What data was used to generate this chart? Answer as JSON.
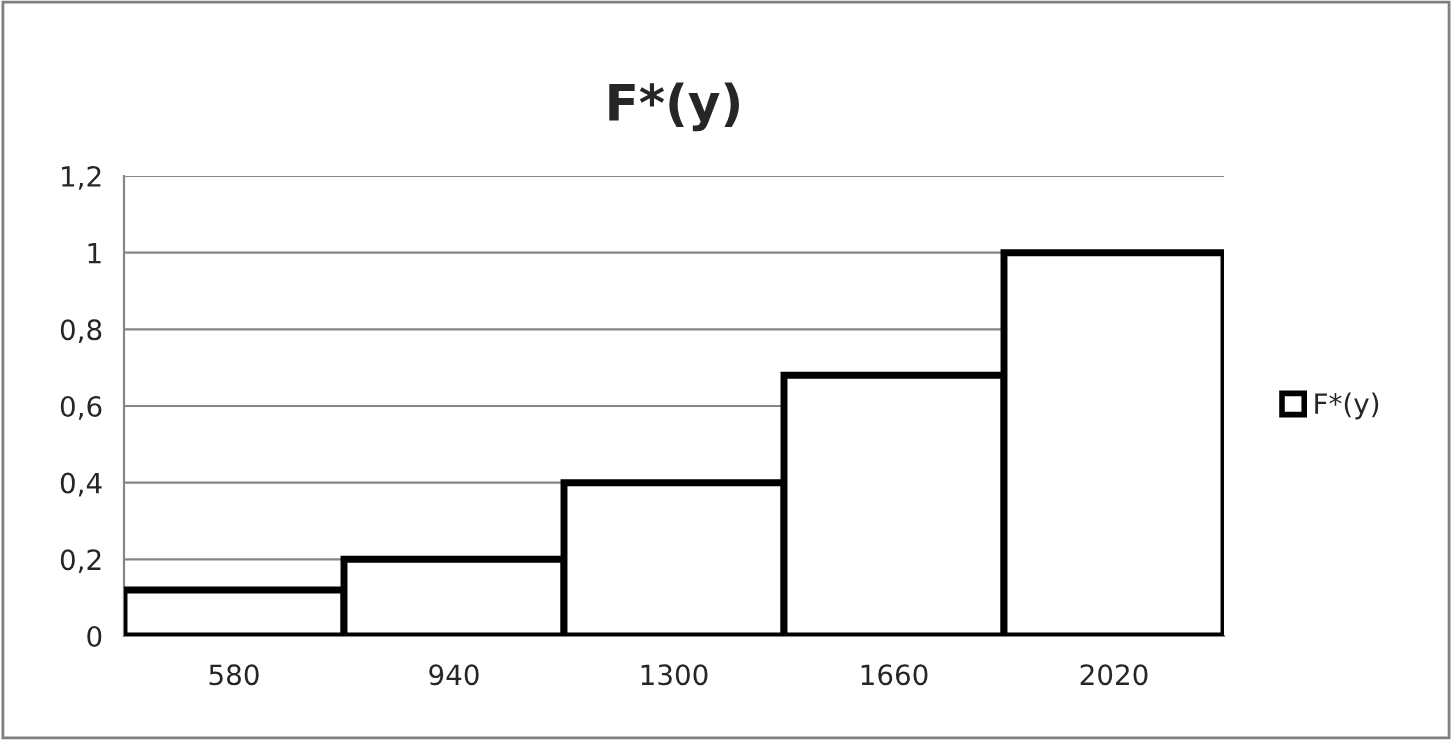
{
  "chart_data": {
    "type": "bar",
    "title": "F*(y)",
    "categories": [
      "580",
      "940",
      "1300",
      "1660",
      "2020"
    ],
    "series": [
      {
        "name": "F*(y)",
        "color": "#ffffff",
        "values": [
          0.12,
          0.2,
          0.4,
          0.68,
          1
        ]
      }
    ],
    "ylim": [
      0,
      1.2
    ],
    "yticks": [
      0,
      {
        "value": 0.2,
        "label": "0,2"
      },
      {
        "value": 0.4,
        "label": "0,4"
      },
      {
        "value": 0.6,
        "label": "0,6"
      },
      {
        "value": 0.8,
        "label": "0,8"
      },
      1,
      {
        "value": 1.2,
        "label": "1,2"
      }
    ],
    "grid": "y",
    "legend": "right"
  }
}
